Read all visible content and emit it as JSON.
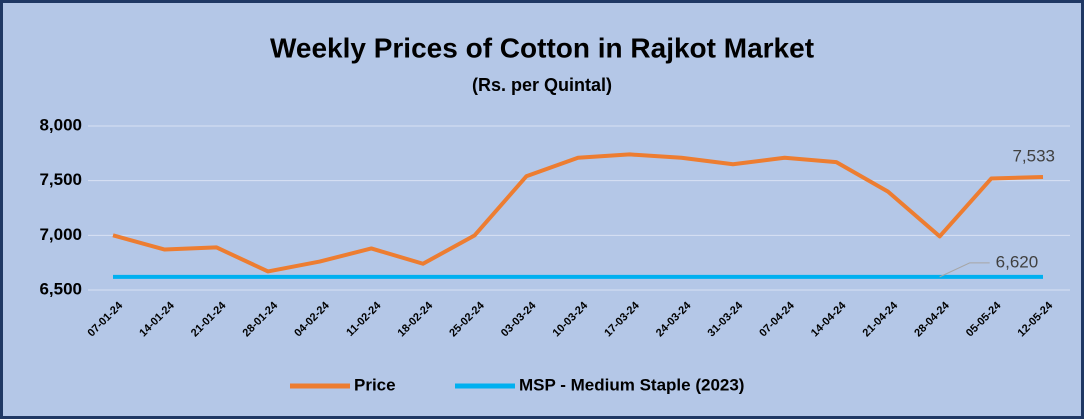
{
  "chart_data": {
    "type": "line",
    "title": "Weekly Prices of Cotton in Rajkot Market",
    "subtitle": "(Rs. per Quintal)",
    "categories": [
      "07-01-24",
      "14-01-24",
      "21-01-24",
      "28-01-24",
      "04-02-24",
      "11-02-24",
      "18-02-24",
      "25-02-24",
      "03-03-24",
      "10-03-24",
      "17-03-24",
      "24-03-24",
      "31-03-24",
      "07-04-24",
      "14-04-24",
      "21-04-24",
      "28-04-24",
      "05-05-24",
      "12-05-24"
    ],
    "series": [
      {
        "name": "Price",
        "color": "#ed7d31",
        "values": [
          7000,
          6870,
          6890,
          6670,
          6760,
          6880,
          6740,
          7000,
          7540,
          7710,
          7740,
          7710,
          7650,
          7710,
          7670,
          7400,
          6990,
          7520,
          7533
        ],
        "value_labels": [
          null,
          null,
          null,
          null,
          null,
          null,
          null,
          null,
          null,
          null,
          null,
          null,
          null,
          null,
          null,
          null,
          null,
          null,
          "7,533"
        ]
      },
      {
        "name": "MSP - Medium Staple (2023)",
        "color": "#00b0f0",
        "values": [
          6620,
          6620,
          6620,
          6620,
          6620,
          6620,
          6620,
          6620,
          6620,
          6620,
          6620,
          6620,
          6620,
          6620,
          6620,
          6620,
          6620,
          6620,
          6620
        ],
        "value_labels": [
          null,
          null,
          null,
          null,
          null,
          null,
          null,
          null,
          null,
          null,
          null,
          null,
          null,
          null,
          null,
          null,
          "6,620",
          null,
          null
        ]
      }
    ],
    "ylim": [
      6500,
      8000
    ],
    "yticks": [
      {
        "value": 6500,
        "label": "6,500"
      },
      {
        "value": 7000,
        "label": "7,000"
      },
      {
        "value": 7500,
        "label": "7,500"
      },
      {
        "value": 8000,
        "label": "8,000"
      }
    ],
    "grid": true,
    "legend": "bottom"
  }
}
